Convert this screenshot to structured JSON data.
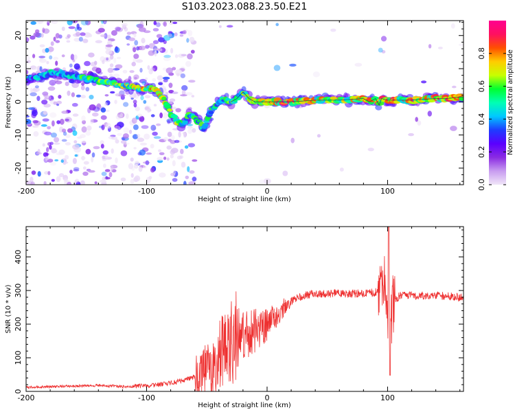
{
  "title": "S103.2023.088.23.50.E21",
  "colors": {
    "snr_line": "#ee3030",
    "ridge_line": "#1e2a55",
    "colormap": [
      "#f0e6f8",
      "#c89cf0",
      "#8a2be2",
      "#5a00ff",
      "#1e3cff",
      "#00c8ff",
      "#00ffb4",
      "#00ff30",
      "#c8ff00",
      "#ffcc00",
      "#ff5000",
      "#ff1060",
      "#ff0090"
    ]
  },
  "chart_data": [
    {
      "type": "heatmap",
      "xlabel": "Height of straight line (km)",
      "ylabel": "Frequency (Hz)",
      "xlim": [
        -200,
        163
      ],
      "ylim": [
        -25,
        24.5
      ],
      "x_ticks": [
        "-200",
        "-100",
        "0",
        "100"
      ],
      "y_ticks": [
        "20",
        "10",
        "0",
        "-10",
        "-20"
      ],
      "colorbar": {
        "label": "Normalized spectral amplitude",
        "range": [
          0,
          1
        ],
        "ticks": [
          "0.0",
          "0.2",
          "0.4",
          "0.6",
          "0.8"
        ]
      },
      "ridge": {
        "x": [
          -200,
          -185,
          -175,
          -165,
          -150,
          -135,
          -120,
          -105,
          -95,
          -88,
          -82,
          -75,
          -70,
          -65,
          -60,
          -57,
          -53,
          -50,
          -45,
          -40,
          -35,
          -30,
          -25,
          -20,
          -15,
          -10,
          -5,
          0,
          20,
          40,
          60,
          80,
          85,
          90,
          93,
          95,
          100,
          120,
          140,
          150,
          160,
          163
        ],
        "y": [
          7,
          8,
          9,
          8,
          7,
          6,
          5,
          4,
          4,
          2,
          -2,
          -6,
          -7,
          -4,
          -5,
          -6,
          -8,
          -6,
          -2,
          0,
          1,
          0,
          1,
          3,
          1,
          0,
          0,
          0,
          0,
          0.5,
          0.5,
          1,
          0,
          1,
          -1,
          1,
          0.5,
          0.5,
          1,
          1,
          1.5,
          1.5
        ]
      },
      "strength": {
        "x": [
          -200,
          -150,
          -110,
          -95,
          -70,
          -55,
          -40,
          -20,
          0,
          20,
          40,
          60,
          80,
          100,
          130,
          163
        ],
        "y": [
          0.45,
          0.55,
          0.7,
          0.75,
          0.6,
          0.55,
          0.55,
          0.65,
          0.8,
          0.9,
          0.75,
          0.7,
          0.75,
          0.8,
          0.8,
          0.8
        ]
      }
    },
    {
      "type": "line",
      "xlabel": "Height of straight line (km)",
      "ylabel": "SNR (10 * v/v)",
      "xlim": [
        -200,
        163
      ],
      "ylim": [
        0,
        490
      ],
      "x_ticks": [
        "-200",
        "-100",
        "0",
        "100"
      ],
      "y_ticks": [
        "0",
        "100",
        "200",
        "300",
        "400"
      ],
      "series": [
        {
          "x": [
            -200,
            -180,
            -160,
            -140,
            -120,
            -100,
            -90,
            -80,
            -70,
            -60,
            -50,
            -40,
            -30,
            -20,
            -10,
            0,
            10,
            20,
            30,
            40,
            50,
            60,
            70,
            80,
            90,
            95,
            98,
            100,
            102,
            104,
            110,
            120,
            140,
            163
          ],
          "y": [
            12,
            14,
            16,
            18,
            14,
            16,
            20,
            25,
            32,
            45,
            70,
            105,
            150,
            170,
            180,
            200,
            235,
            270,
            285,
            290,
            290,
            292,
            290,
            292,
            295,
            300,
            340,
            210,
            140,
            260,
            285,
            285,
            285,
            280
          ]
        }
      ]
    }
  ]
}
